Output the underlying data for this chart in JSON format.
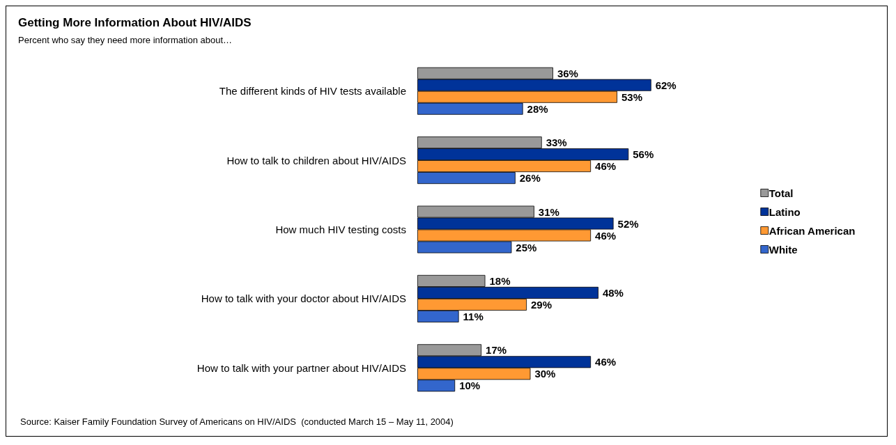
{
  "chart_data": {
    "type": "bar",
    "orientation": "horizontal",
    "title": "Getting More Information About HIV/AIDS",
    "subtitle": "Percent who say they need more information about…",
    "categories": [
      "The different kinds of HIV tests available",
      "How to talk to children about HIV/AIDS",
      "How much HIV testing costs",
      "How to talk with your doctor about HIV/AIDS",
      "How to talk with your partner about HIV/AIDS"
    ],
    "series": [
      {
        "name": "Total",
        "color": "#999999",
        "values": [
          36,
          33,
          31,
          18,
          17
        ],
        "value_labels": [
          "36%",
          "33%",
          "31%",
          "18%",
          "17%"
        ]
      },
      {
        "name": "Latino",
        "color": "#003399",
        "values": [
          62,
          56,
          52,
          48,
          46
        ],
        "value_labels": [
          "62%",
          "56%",
          "52%",
          "48%",
          "46%"
        ]
      },
      {
        "name": "African American",
        "color": "#ff9933",
        "values": [
          53,
          46,
          46,
          29,
          30
        ],
        "value_labels": [
          "53%",
          "46%",
          "46%",
          "29%",
          "30%"
        ]
      },
      {
        "name": "White",
        "color": "#3366cc",
        "values": [
          28,
          26,
          25,
          11,
          10
        ],
        "value_labels": [
          "28%",
          "26%",
          "25%",
          "11%",
          "10%"
        ]
      }
    ],
    "legend": "right",
    "annotations": [
      "Source: Kaiser Family Foundation Survey of Americans on HIV/AIDS  (conducted March 15 – May 11, 2004)"
    ]
  }
}
